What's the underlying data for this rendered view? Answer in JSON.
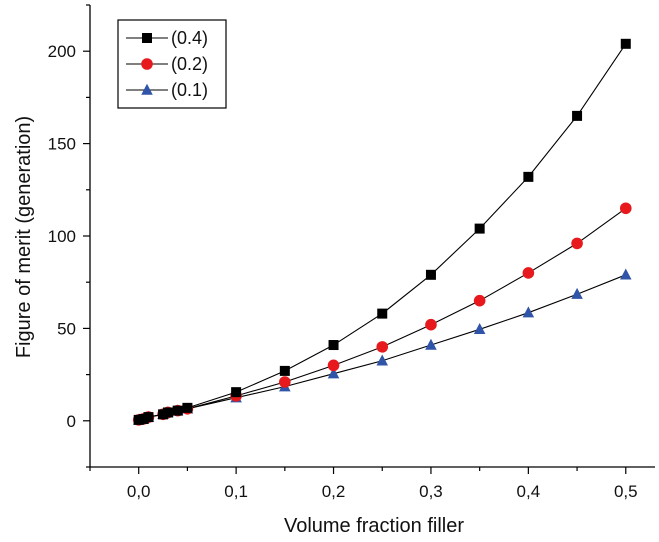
{
  "chart_data": {
    "type": "line",
    "xlabel": "Volume fraction filler",
    "ylabel": "Figure of merit (generation)",
    "xlim": [
      -0.05,
      0.53
    ],
    "ylim": [
      -25,
      225
    ],
    "xticks": [
      0.0,
      0.1,
      0.2,
      0.3,
      0.4,
      0.5
    ],
    "xtick_labels": [
      "0,0",
      "0,1",
      "0,2",
      "0,3",
      "0,4",
      "0,5"
    ],
    "yticks": [
      0,
      50,
      100,
      150,
      200
    ],
    "ytick_labels": [
      "0",
      "50",
      "100",
      "150",
      "200"
    ],
    "grid": false,
    "legend_position": "top-left",
    "series": [
      {
        "name": "(0.4)",
        "color": "#000000",
        "marker": "square",
        "x": [
          0.0,
          0.005,
          0.01,
          0.025,
          0.03,
          0.04,
          0.05,
          0.1,
          0.15,
          0.2,
          0.25,
          0.3,
          0.35,
          0.4,
          0.45,
          0.5
        ],
        "y": [
          0.5,
          1,
          2,
          3.5,
          4.5,
          5.5,
          7,
          15.5,
          27,
          41,
          58,
          79,
          104,
          132,
          165,
          204
        ]
      },
      {
        "name": "(0.2)",
        "color": "#e8191c",
        "marker": "circle",
        "x": [
          0.0,
          0.005,
          0.01,
          0.025,
          0.03,
          0.04,
          0.05,
          0.1,
          0.15,
          0.2,
          0.25,
          0.3,
          0.35,
          0.4,
          0.45,
          0.5
        ],
        "y": [
          0.5,
          1,
          2,
          3.5,
          4.5,
          5.5,
          6.5,
          13.5,
          21,
          30,
          40,
          52,
          65,
          80,
          96,
          115
        ]
      },
      {
        "name": "(0.1)",
        "color": "#2f54a8",
        "marker": "triangle",
        "x": [
          0.0,
          0.005,
          0.01,
          0.025,
          0.03,
          0.04,
          0.05,
          0.1,
          0.15,
          0.2,
          0.25,
          0.3,
          0.35,
          0.4,
          0.45,
          0.5
        ],
        "y": [
          0.5,
          1,
          2,
          3.5,
          4.5,
          5.5,
          6.5,
          12.5,
          18.5,
          25.5,
          32.5,
          41,
          49.5,
          58.5,
          68.5,
          79
        ]
      }
    ]
  }
}
